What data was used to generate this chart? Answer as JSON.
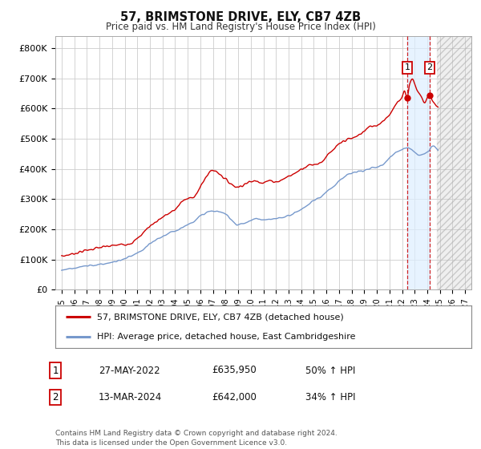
{
  "title": "57, BRIMSTONE DRIVE, ELY, CB7 4ZB",
  "subtitle": "Price paid vs. HM Land Registry's House Price Index (HPI)",
  "ylabel_ticks": [
    "£0",
    "£100K",
    "£200K",
    "£300K",
    "£400K",
    "£500K",
    "£600K",
    "£700K",
    "£800K"
  ],
  "ytick_vals": [
    0,
    100000,
    200000,
    300000,
    400000,
    500000,
    600000,
    700000,
    800000
  ],
  "ylim": [
    0,
    840000
  ],
  "xlim_start": 1994.5,
  "xlim_end": 2027.5,
  "red_line_color": "#cc0000",
  "blue_line_color": "#7799cc",
  "point1_x": 2022.41,
  "point1_y": 635950,
  "point2_x": 2024.2,
  "point2_y": 642000,
  "vline1_x": 2022.41,
  "vline2_x": 2024.2,
  "shade_x1": 2022.41,
  "shade_x2": 2024.2,
  "future_shade_x": 2024.75,
  "legend_line1": "57, BRIMSTONE DRIVE, ELY, CB7 4ZB (detached house)",
  "legend_line2": "HPI: Average price, detached house, East Cambridgeshire",
  "table_row1_num": "1",
  "table_row1_date": "27-MAY-2022",
  "table_row1_price": "£635,950",
  "table_row1_hpi": "50% ↑ HPI",
  "table_row2_num": "2",
  "table_row2_date": "13-MAR-2024",
  "table_row2_price": "£642,000",
  "table_row2_hpi": "34% ↑ HPI",
  "footnote": "Contains HM Land Registry data © Crown copyright and database right 2024.\nThis data is licensed under the Open Government Licence v3.0.",
  "background_color": "#ffffff",
  "grid_color": "#cccccc",
  "xticks": [
    1995,
    1996,
    1997,
    1998,
    1999,
    2000,
    2001,
    2002,
    2003,
    2004,
    2005,
    2006,
    2007,
    2008,
    2009,
    2010,
    2011,
    2012,
    2013,
    2014,
    2015,
    2016,
    2017,
    2018,
    2019,
    2020,
    2021,
    2022,
    2023,
    2024,
    2025,
    2026,
    2027
  ],
  "red_anchors_x": [
    1995.0,
    1996.0,
    1997.5,
    1999.0,
    2000.5,
    2002.0,
    2003.0,
    2004.0,
    2004.5,
    2005.5,
    2007.0,
    2007.5,
    2008.0,
    2009.0,
    2009.5,
    2010.5,
    2011.0,
    2011.5,
    2012.0,
    2013.0,
    2013.5,
    2014.0,
    2014.5,
    2015.0,
    2015.5,
    2016.0,
    2016.5,
    2017.0,
    2017.5,
    2018.0,
    2018.5,
    2019.0,
    2019.5,
    2020.0,
    2020.5,
    2021.0,
    2021.5,
    2022.0,
    2022.2,
    2022.41,
    2022.6,
    2022.8,
    2023.0,
    2023.2,
    2023.5,
    2023.8,
    2024.0,
    2024.2,
    2024.5,
    2024.8
  ],
  "red_anchors_y": [
    110000,
    120000,
    135000,
    145000,
    155000,
    210000,
    240000,
    265000,
    290000,
    310000,
    395000,
    385000,
    365000,
    340000,
    350000,
    360000,
    355000,
    360000,
    358000,
    375000,
    385000,
    400000,
    410000,
    415000,
    420000,
    440000,
    460000,
    480000,
    495000,
    500000,
    510000,
    525000,
    540000,
    545000,
    560000,
    580000,
    610000,
    640000,
    660000,
    635950,
    680000,
    700000,
    680000,
    660000,
    640000,
    620000,
    635000,
    642000,
    620000,
    605000
  ],
  "blue_anchors_x": [
    1995.0,
    1997.0,
    1999.0,
    2001.0,
    2002.5,
    2004.0,
    2005.0,
    2007.0,
    2008.0,
    2009.0,
    2009.5,
    2010.5,
    2011.0,
    2012.0,
    2013.0,
    2013.5,
    2014.0,
    2014.5,
    2015.0,
    2015.5,
    2016.0,
    2016.5,
    2017.0,
    2017.5,
    2018.0,
    2018.5,
    2019.0,
    2019.5,
    2020.0,
    2020.5,
    2021.0,
    2021.5,
    2022.0,
    2022.5,
    2023.0,
    2023.5,
    2024.0,
    2024.5,
    2024.8
  ],
  "blue_anchors_y": [
    65000,
    78000,
    90000,
    120000,
    165000,
    195000,
    215000,
    260000,
    250000,
    215000,
    220000,
    235000,
    230000,
    235000,
    245000,
    255000,
    265000,
    280000,
    295000,
    305000,
    325000,
    340000,
    360000,
    375000,
    385000,
    390000,
    395000,
    400000,
    405000,
    415000,
    435000,
    455000,
    465000,
    470000,
    455000,
    445000,
    455000,
    475000,
    465000
  ]
}
